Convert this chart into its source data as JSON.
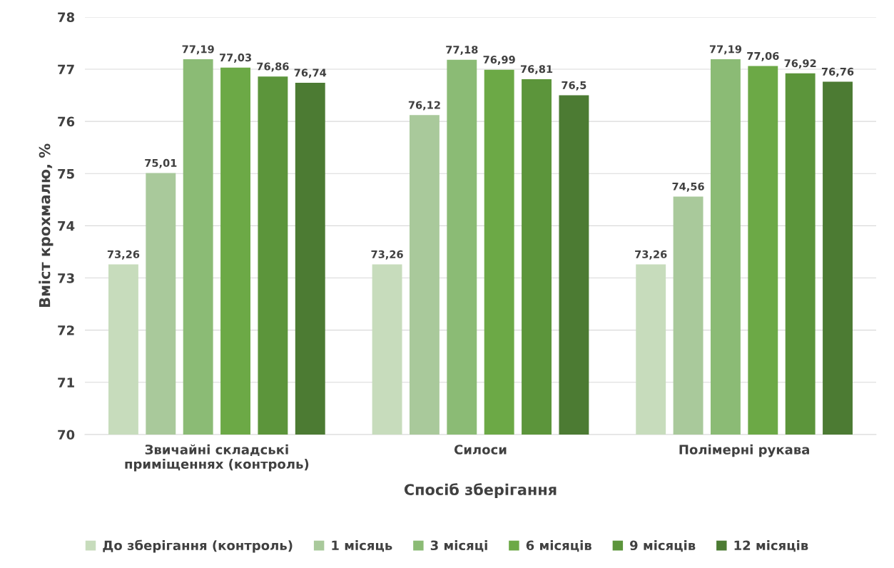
{
  "chart_data": {
    "type": "bar",
    "xlabel": "Спосіб зберігання",
    "ylabel": "Вміст крохмалю, %",
    "categories": [
      "Звичайні складські\nприміщеннях (контроль)",
      "Силоси",
      "Полімерні рукава"
    ],
    "series": [
      {
        "name": "До зберігання (контроль)",
        "color": "#c7dcbc",
        "values": [
          73.26,
          73.26,
          73.26
        ],
        "value_labels": [
          "73,26",
          "73,26",
          "73,26"
        ]
      },
      {
        "name": "1 місяць",
        "color": "#a9c99b",
        "values": [
          75.01,
          76.12,
          74.56
        ],
        "value_labels": [
          "75,01",
          "76,12",
          "74,56"
        ]
      },
      {
        "name": "3 місяці",
        "color": "#8bbb75",
        "values": [
          77.19,
          77.18,
          77.19
        ],
        "value_labels": [
          "77,19",
          "77,18",
          "77,19"
        ]
      },
      {
        "name": "6 місяців",
        "color": "#6ca946",
        "values": [
          77.03,
          76.99,
          77.06
        ],
        "value_labels": [
          "77,03",
          "76,99",
          "77,06"
        ]
      },
      {
        "name": "9 місяців",
        "color": "#5c953b",
        "values": [
          76.86,
          76.81,
          76.92
        ],
        "value_labels": [
          "76,86",
          "76,81",
          "76,92"
        ]
      },
      {
        "name": "12 місяців",
        "color": "#4c7b33",
        "values": [
          76.74,
          76.5,
          76.76
        ],
        "value_labels": [
          "76,74",
          "76,5",
          "76,76"
        ]
      }
    ],
    "ylim": [
      70,
      78
    ],
    "yticks": [
      70,
      71,
      72,
      73,
      74,
      75,
      76,
      77,
      78
    ],
    "grid": "y",
    "legend": "bottom"
  }
}
